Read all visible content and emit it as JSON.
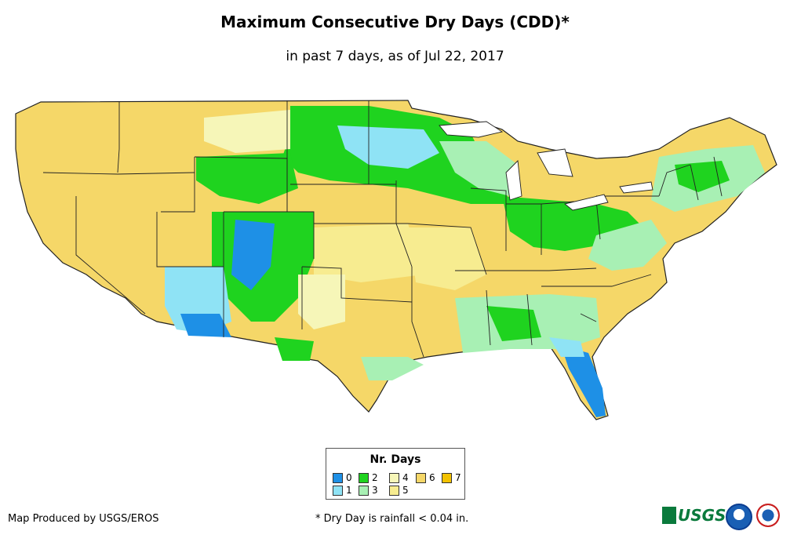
{
  "header": {
    "title": "Maximum Consecutive Dry Days (CDD)*",
    "subtitle": "in past 7 days, as of Jul 22, 2017"
  },
  "legend": {
    "title": "Nr. Days",
    "items": [
      {
        "label": "0",
        "color": "#1e90e6"
      },
      {
        "label": "1",
        "color": "#8fe3f5"
      },
      {
        "label": "2",
        "color": "#1fd31f"
      },
      {
        "label": "3",
        "color": "#a8f0b4"
      },
      {
        "label": "4",
        "color": "#f6f6b8"
      },
      {
        "label": "5",
        "color": "#f7ec90"
      },
      {
        "label": "6",
        "color": "#f5d768"
      },
      {
        "label": "7",
        "color": "#f3c200"
      }
    ]
  },
  "footer": {
    "credit": "Map Produced by USGS/EROS",
    "footnote": "* Dry Day is rainfall < 0.04 in.",
    "usgs_logo": "USGS",
    "noaa_logo": "noaa-icon",
    "nws_logo": "nws-icon"
  },
  "map": {
    "region": "Contiguous United States",
    "base_color": "#f5d768",
    "border_color": "#222222"
  }
}
